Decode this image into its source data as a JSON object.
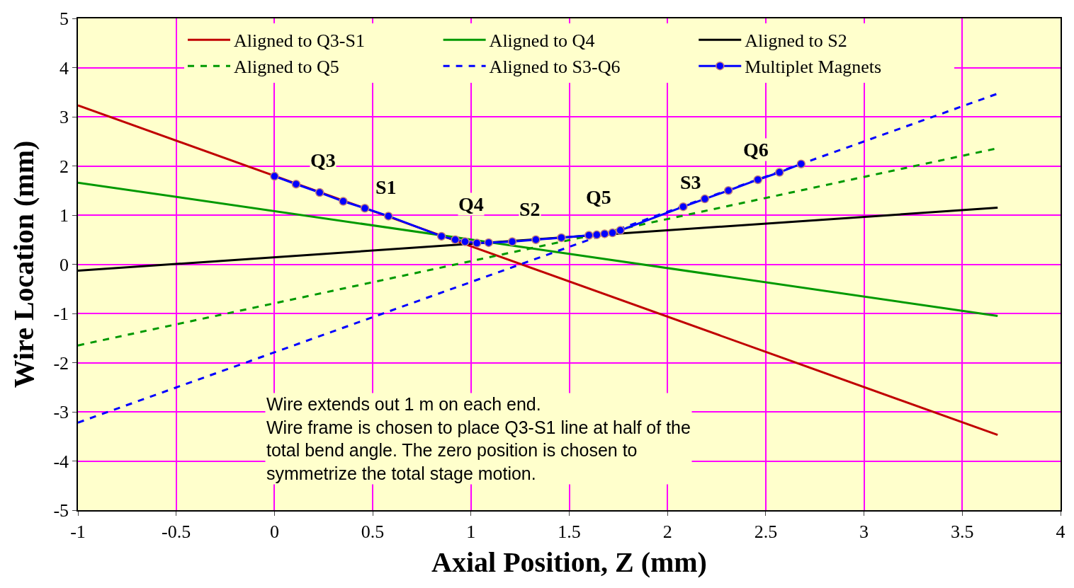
{
  "chart_data": {
    "type": "line",
    "xlabel": "Axial Position, Z (mm)",
    "ylabel": "Wire Location (mm)",
    "xlim": [
      -1,
      4
    ],
    "xticks": [
      -1,
      -0.5,
      0,
      0.5,
      1,
      1.5,
      2,
      2.5,
      3,
      3.5,
      4
    ],
    "ylim": [
      -5,
      5
    ],
    "yticks": [
      -5,
      -4,
      -3,
      -2,
      -1,
      0,
      1,
      2,
      3,
      4,
      5
    ],
    "grid": true,
    "legend": "top",
    "series": [
      {
        "name": "Aligned to Q3-S1",
        "color": "#c00000",
        "line_style": "solid",
        "marker": "none",
        "x": [
          -1,
          3.68
        ],
        "values": [
          3.23,
          -3.47
        ]
      },
      {
        "name": "Aligned to Q4",
        "color": "#009900",
        "line_style": "solid",
        "marker": "none",
        "x": [
          -1,
          3.68
        ],
        "values": [
          1.66,
          -1.05
        ]
      },
      {
        "name": "Aligned to S2",
        "color": "#000000",
        "line_style": "solid",
        "marker": "none",
        "x": [
          -1,
          3.68
        ],
        "values": [
          -0.13,
          1.15
        ]
      },
      {
        "name": "Aligned to Q5",
        "color": "#009900",
        "line_style": "dashed",
        "marker": "none",
        "x": [
          -1,
          3.68
        ],
        "values": [
          -1.65,
          2.36
        ]
      },
      {
        "name": "Aligned to S3-Q6",
        "color": "#0000ff",
        "line_style": "dashed",
        "marker": "none",
        "x": [
          -1,
          3.68
        ],
        "values": [
          -3.22,
          3.47
        ]
      },
      {
        "name": "Multiplet Magnets",
        "color": "#0000ff",
        "line_style": "solid",
        "marker": "circle",
        "x": [
          0.0,
          0.11,
          0.23,
          0.35,
          0.46,
          0.58,
          0.85,
          0.92,
          0.97,
          1.03,
          1.09,
          1.21,
          1.33,
          1.46,
          1.6,
          1.64,
          1.68,
          1.72,
          1.76,
          2.08,
          2.19,
          2.31,
          2.46,
          2.57,
          2.68
        ],
        "values": [
          1.79,
          1.63,
          1.46,
          1.28,
          1.14,
          0.98,
          0.57,
          0.5,
          0.46,
          0.43,
          0.44,
          0.46,
          0.5,
          0.54,
          0.59,
          0.6,
          0.62,
          0.64,
          0.69,
          1.17,
          1.33,
          1.5,
          1.72,
          1.87,
          2.04
        ]
      }
    ],
    "annotations": [
      "Q3",
      "S1",
      "Q4",
      "S2",
      "Q5",
      "S3",
      "Q6",
      "Wire extends out 1 m on each end.\nWire frame is chosen to place Q3-S1 line at half of the\ntotal bend angle. The zero position is chosen to\nsymmetrize the total stage motion."
    ]
  }
}
